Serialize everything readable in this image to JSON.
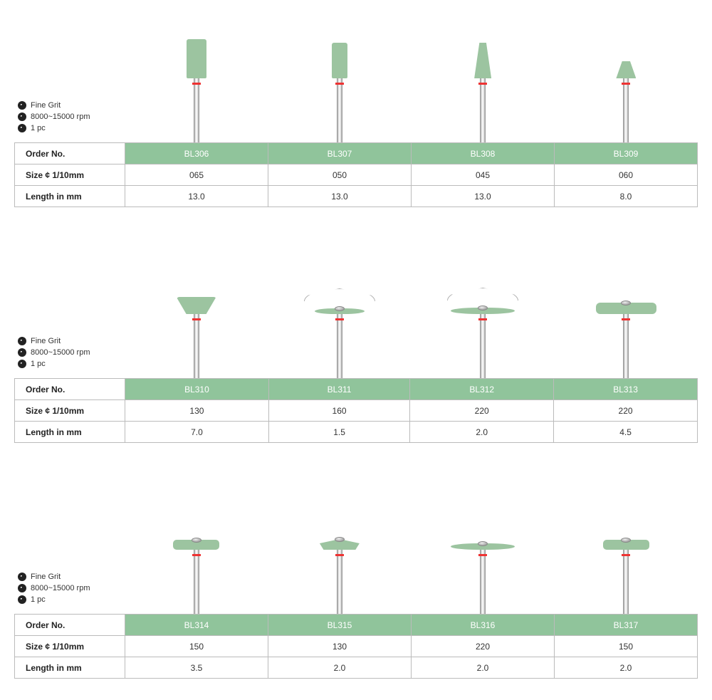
{
  "colors": {
    "head_green": "#9cc4a0",
    "header_bg": "#90c49b",
    "header_text": "#ffffff",
    "border": "#bbbbbb",
    "red_ring": "#e03030"
  },
  "row_labels": {
    "order": "Order No.",
    "size": "Size ¢ 1/10mm",
    "length": "Length in mm"
  },
  "spec_lines": [
    "Fine Grit",
    "8000~15000 rpm",
    "1 pc"
  ],
  "sections": [
    {
      "products": [
        {
          "order": "BL306",
          "size": "065",
          "length": "13.0",
          "shape": "cylinder-l"
        },
        {
          "order": "BL307",
          "size": "050",
          "length": "13.0",
          "shape": "cylinder-m"
        },
        {
          "order": "BL308",
          "size": "045",
          "length": "13.0",
          "shape": "cone"
        },
        {
          "order": "BL309",
          "size": "060",
          "length": "8.0",
          "shape": "invcone-s"
        }
      ]
    },
    {
      "products": [
        {
          "order": "BL310",
          "size": "130",
          "length": "7.0",
          "shape": "cup"
        },
        {
          "order": "BL311",
          "size": "160",
          "length": "1.5",
          "shape": "thin-disc",
          "outline": true,
          "hub": true
        },
        {
          "order": "BL312",
          "size": "220",
          "length": "2.0",
          "shape": "thin-disc-l",
          "outline": true,
          "hub": true
        },
        {
          "order": "BL313",
          "size": "220",
          "length": "4.5",
          "shape": "thick-disc",
          "hub": true
        }
      ]
    },
    {
      "products": [
        {
          "order": "BL314",
          "size": "150",
          "length": "3.5",
          "shape": "disc-m",
          "hub": true
        },
        {
          "order": "BL315",
          "size": "130",
          "length": "2.0",
          "shape": "knife",
          "hub": true
        },
        {
          "order": "BL316",
          "size": "220",
          "length": "2.0",
          "shape": "thin-disc-l",
          "hub": true
        },
        {
          "order": "BL317",
          "size": "150",
          "length": "2.0",
          "shape": "disc-m",
          "hub": true
        }
      ]
    }
  ]
}
